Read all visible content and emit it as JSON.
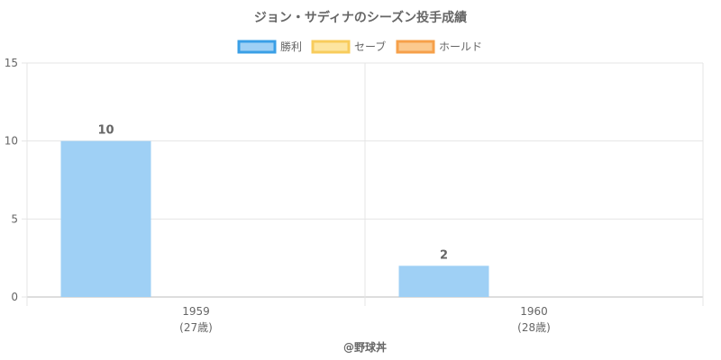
{
  "chart_data": {
    "type": "bar",
    "title": "ジョン・サディナのシーズン投手成績",
    "categories": [
      {
        "year": "1959",
        "age": "(27歳)"
      },
      {
        "year": "1960",
        "age": "(28歳)"
      }
    ],
    "series": [
      {
        "name": "勝利",
        "values": [
          10,
          2
        ],
        "fill": "#9fd0f5",
        "stroke": "#3a9fe6"
      },
      {
        "name": "セーブ",
        "values": [
          0,
          0
        ],
        "fill": "#fde5a0",
        "stroke": "#f8cc5c"
      },
      {
        "name": "ホールド",
        "values": [
          0,
          0
        ],
        "fill": "#fbc98e",
        "stroke": "#f6a04a"
      }
    ],
    "ylim": [
      0,
      15
    ],
    "yticks": [
      0,
      5,
      10,
      15
    ],
    "xlabel": "",
    "ylabel": "",
    "grid": true,
    "legend_position": "top-center",
    "watermark": "@野球丼"
  }
}
